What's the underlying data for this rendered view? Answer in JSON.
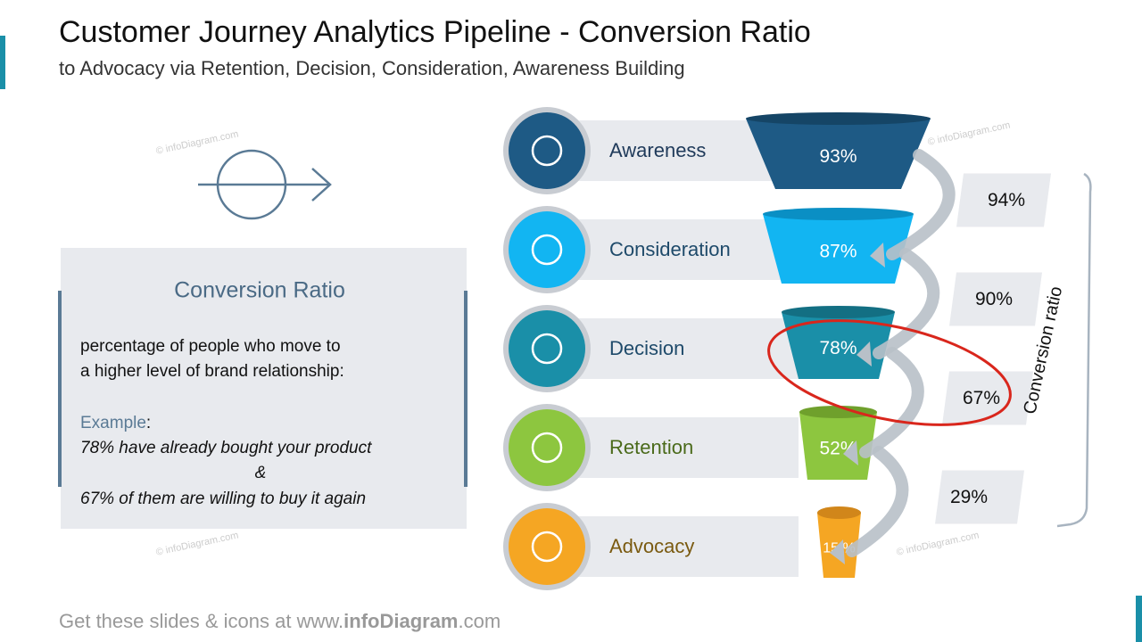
{
  "header": {
    "title": "Customer Journey Analytics Pipeline - Conversion Ratio",
    "subtitle": "to Advocacy via Retention, Decision, Consideration, Awareness Building"
  },
  "definition": {
    "title": "Conversion Ratio",
    "lines": [
      "percentage of people who move to",
      "a higher level of brand relationship:"
    ],
    "example_label": "Example",
    "example_colon": ":",
    "example_lines": [
      "78% have already bought your product",
      "&",
      "67% of them are willing to buy it again"
    ]
  },
  "stages": [
    {
      "label": "Awareness",
      "value": "93%"
    },
    {
      "label": "Consideration",
      "value": "87%"
    },
    {
      "label": "Decision",
      "value": "78%"
    },
    {
      "label": "Retention",
      "value": "52%"
    },
    {
      "label": "Advocacy",
      "value": "15 %"
    }
  ],
  "conversions": [
    "94%",
    "90%",
    "67%",
    "29%"
  ],
  "side_label": "Conversion ratio",
  "watermark": "© infoDiagram.com",
  "footer": {
    "prefix": "Get these slides & icons at www.",
    "brand": "infoDiagram",
    "suffix": ".com"
  }
}
